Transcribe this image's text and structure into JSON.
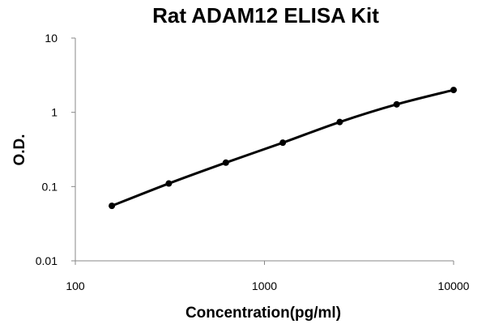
{
  "chart_data": {
    "type": "scatter",
    "title": "Rat ADAM12 ELISA Kit",
    "xlabel": "Concentration(pg/ml)",
    "ylabel": "O.D.",
    "xscale": "log",
    "yscale": "log",
    "xlim": [
      100,
      10000
    ],
    "ylim": [
      0.01,
      10
    ],
    "x_ticks": [
      100,
      1000,
      10000
    ],
    "x_tick_labels": [
      "100",
      "1000",
      "10000"
    ],
    "y_ticks": [
      0.01,
      0.1,
      1,
      10
    ],
    "y_tick_labels": [
      "0.01",
      "0.1",
      "1",
      "10"
    ],
    "grid": false,
    "legend": "none",
    "series": [
      {
        "x": [
          156,
          312,
          625,
          1250,
          2500,
          5000,
          10000
        ],
        "y": [
          0.055,
          0.11,
          0.21,
          0.39,
          0.74,
          1.28,
          2.0
        ],
        "color": "#000000",
        "fit_curve": true
      }
    ]
  }
}
